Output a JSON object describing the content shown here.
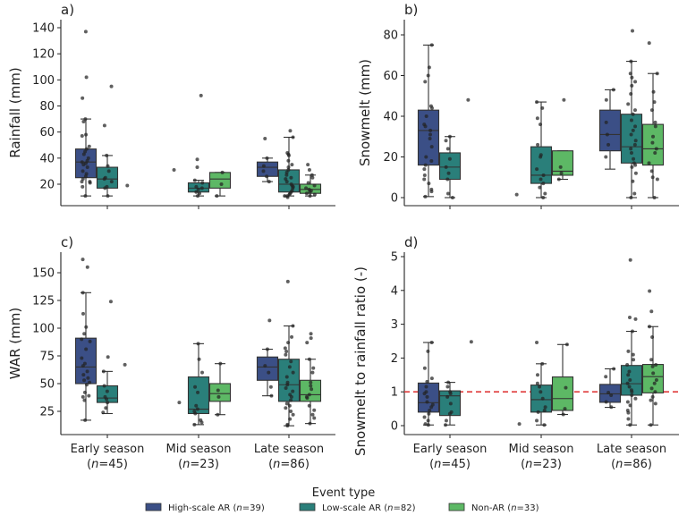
{
  "chart_data": {
    "type": "boxplot",
    "legend": {
      "title": "Event type",
      "placement": "bottom-center",
      "entries": [
        {
          "key": "high",
          "label": "High-scale AR (",
          "n_label": "n",
          "suffix": "=39)",
          "color": "#3b4f86"
        },
        {
          "key": "low",
          "label": "Low-scale AR (",
          "n_label": "n",
          "suffix": "=82)",
          "color": "#2a7f7a"
        },
        {
          "key": "non",
          "label": "Non-AR (",
          "n_label": "n",
          "suffix": "=33)",
          "color": "#5db865"
        }
      ]
    },
    "categories": [
      {
        "label": "Early season",
        "n": "(n=45)",
        "n_pre": "(",
        "n_it": "n",
        "n_post": "=45)"
      },
      {
        "label": "Mid season",
        "n": "(n=23)",
        "n_pre": "(",
        "n_it": "n",
        "n_post": "=23)"
      },
      {
        "label": "Late season",
        "n": "(n=86)",
        "n_pre": "(",
        "n_it": "n",
        "n_post": "=86)"
      }
    ],
    "panels": [
      {
        "id": "a",
        "label": "a)",
        "ylabel": "Rainfall (mm)",
        "ylim": [
          3,
          143
        ],
        "yticks": [
          20,
          40,
          60,
          80,
          100,
          120,
          140
        ],
        "show_xlabels": false,
        "boxes": [
          {
            "cat": 0,
            "series": "high",
            "q1": 25,
            "median": 37,
            "q3": 47,
            "whislo": 11,
            "whishi": 70,
            "points": [
              137,
              102,
              86,
              68,
              70,
              58,
              57,
              49,
              47,
              45,
              43,
              40,
              38,
              37,
              36,
              35,
              33,
              30,
              28,
              26,
              24,
              22,
              22,
              21,
              18,
              11
            ]
          },
          {
            "cat": 0,
            "series": "low",
            "q1": 17,
            "median": 24,
            "q3": 33,
            "whislo": 11,
            "whishi": 42,
            "points": [
              95,
              65,
              42,
              34,
              30,
              25,
              24,
              22,
              18,
              17,
              11
            ]
          },
          {
            "cat": 0,
            "series": "non",
            "q1": null,
            "median": null,
            "q3": null,
            "whislo": null,
            "whishi": null,
            "points": [
              19
            ]
          },
          {
            "cat": 1,
            "series": "high",
            "q1": null,
            "median": null,
            "q3": null,
            "whislo": null,
            "whishi": null,
            "points": [
              31
            ]
          },
          {
            "cat": 1,
            "series": "low",
            "q1": 14,
            "median": 17,
            "q3": 21,
            "whislo": 11,
            "whishi": 23,
            "points": [
              88,
              39,
              33,
              23,
              21,
              18,
              17,
              16,
              14,
              13,
              11
            ]
          },
          {
            "cat": 1,
            "series": "non",
            "q1": 17,
            "median": 24,
            "q3": 29,
            "whislo": 11,
            "whishi": 29,
            "points": [
              29,
              20,
              11
            ]
          },
          {
            "cat": 2,
            "series": "high",
            "q1": 26,
            "median": 33,
            "q3": 37,
            "whislo": 22,
            "whishi": 40,
            "points": [
              55,
              40,
              34,
              30,
              26,
              22
            ]
          },
          {
            "cat": 2,
            "series": "low",
            "q1": 14,
            "median": 20,
            "q3": 31,
            "whislo": 11,
            "whishi": 56,
            "points": [
              61,
              56,
              44,
              43,
              42,
              38,
              35,
              33,
              31,
              29,
              27,
              25,
              24,
              22,
              20,
              19,
              18,
              17,
              15,
              14,
              13,
              12,
              11,
              11,
              10
            ]
          },
          {
            "cat": 2,
            "series": "non",
            "q1": 13,
            "median": 16,
            "q3": 20,
            "whislo": 11,
            "whishi": 27,
            "points": [
              35,
              31,
              27,
              25,
              21,
              19,
              17,
              16,
              15,
              14,
              13,
              12,
              11
            ]
          }
        ]
      },
      {
        "id": "b",
        "label": "b)",
        "ylabel": "Snowmelt (mm)",
        "ylim": [
          -3,
          86
        ],
        "yticks": [
          0,
          20,
          40,
          60,
          80
        ],
        "show_xlabels": false,
        "boxes": [
          {
            "cat": 0,
            "series": "high",
            "q1": 16,
            "median": 33,
            "q3": 43,
            "whislo": 0.5,
            "whishi": 75,
            "points": [
              75,
              64,
              60,
              57,
              45,
              44,
              40,
              36,
              35,
              33,
              31,
              29,
              25,
              20,
              18,
              16,
              14,
              11,
              9,
              7,
              4,
              3,
              0.5
            ]
          },
          {
            "cat": 0,
            "series": "low",
            "q1": 9,
            "median": 15,
            "q3": 22,
            "whislo": 0,
            "whishi": 30,
            "points": [
              30,
              28,
              24,
              19,
              15,
              12,
              9,
              2,
              0
            ]
          },
          {
            "cat": 0,
            "series": "non",
            "q1": null,
            "median": null,
            "q3": null,
            "whislo": null,
            "whishi": null,
            "points": [
              48
            ]
          },
          {
            "cat": 1,
            "series": "high",
            "q1": null,
            "median": null,
            "q3": null,
            "whislo": null,
            "whishi": null,
            "points": [
              1.5
            ]
          },
          {
            "cat": 1,
            "series": "low",
            "q1": 7,
            "median": 11,
            "q3": 25,
            "whislo": 0,
            "whishi": 47,
            "points": [
              47,
              44,
              39,
              36,
              26,
              21,
              20,
              14,
              11,
              9,
              7,
              5,
              2,
              0
            ]
          },
          {
            "cat": 1,
            "series": "non",
            "q1": 11,
            "median": 13,
            "q3": 23,
            "whislo": 9,
            "whishi": 23,
            "points": [
              48,
              15,
              12,
              9
            ]
          },
          {
            "cat": 2,
            "series": "high",
            "q1": 23,
            "median": 31,
            "q3": 43,
            "whislo": 14,
            "whishi": 53,
            "points": [
              53,
              48,
              37,
              31,
              26,
              20
            ]
          },
          {
            "cat": 2,
            "series": "low",
            "q1": 17,
            "median": 25,
            "q3": 41,
            "whislo": 0,
            "whishi": 67,
            "points": [
              82,
              67,
              61,
              59,
              57,
              55,
              51,
              46,
              43,
              41,
              38,
              35,
              33,
              31,
              28,
              26,
              24,
              22,
              19,
              17,
              16,
              15,
              12,
              8,
              2,
              0
            ]
          },
          {
            "cat": 2,
            "series": "non",
            "q1": 16,
            "median": 24,
            "q3": 36,
            "whislo": 0,
            "whishi": 61,
            "points": [
              76,
              61,
              52,
              47,
              43,
              37,
              35,
              30,
              27,
              24,
              22,
              17,
              13,
              10,
              9,
              0
            ]
          }
        ]
      },
      {
        "id": "c",
        "label": "c)",
        "ylabel": "WAR (mm)",
        "ylim": [
          8,
          170
        ],
        "yticks": [
          25,
          50,
          75,
          100,
          125,
          150
        ],
        "show_xlabels": true,
        "boxes": [
          {
            "cat": 0,
            "series": "high",
            "q1": 50,
            "median": 65,
            "q3": 91,
            "whislo": 17,
            "whishi": 132,
            "points": [
              162,
              155,
              132,
              113,
              101,
              95,
              90,
              88,
              81,
              73,
              68,
              66,
              61,
              58,
              55,
              53,
              51,
              49,
              42,
              39,
              38,
              35,
              17
            ]
          },
          {
            "cat": 0,
            "series": "low",
            "q1": 33,
            "median": 37,
            "q3": 48,
            "whislo": 23,
            "whishi": 61,
            "points": [
              124,
              74,
              61,
              48,
              43,
              38,
              36,
              33,
              28,
              24
            ]
          },
          {
            "cat": 0,
            "series": "non",
            "q1": null,
            "median": null,
            "q3": null,
            "whislo": null,
            "whishi": null,
            "points": [
              67
            ]
          },
          {
            "cat": 1,
            "series": "high",
            "q1": null,
            "median": null,
            "q3": null,
            "whislo": null,
            "whishi": null,
            "points": [
              33
            ]
          },
          {
            "cat": 1,
            "series": "low",
            "q1": 23,
            "median": 27,
            "q3": 56,
            "whislo": 13,
            "whishi": 86,
            "points": [
              86,
              72,
              60,
              47,
              42,
              30,
              27,
              25,
              23,
              17,
              15,
              13
            ]
          },
          {
            "cat": 1,
            "series": "non",
            "q1": 34,
            "median": 41,
            "q3": 50,
            "whislo": 22,
            "whishi": 68,
            "points": [
              68,
              44,
              38,
              22
            ]
          },
          {
            "cat": 2,
            "series": "high",
            "q1": 53,
            "median": 65,
            "q3": 74,
            "whislo": 39,
            "whishi": 81,
            "points": [
              107,
              81,
              66,
              60,
              47,
              39
            ]
          },
          {
            "cat": 2,
            "series": "low",
            "q1": 34,
            "median": 49,
            "q3": 72,
            "whislo": 12,
            "whishi": 102,
            "points": [
              142,
              102,
              92,
              87,
              82,
              79,
              76,
              70,
              65,
              60,
              56,
              51,
              49,
              46,
              43,
              40,
              38,
              35,
              32,
              30,
              28,
              25,
              22,
              18,
              13,
              12
            ]
          },
          {
            "cat": 2,
            "series": "non",
            "q1": 34,
            "median": 40,
            "q3": 53,
            "whislo": 14,
            "whishi": 72,
            "points": [
              95,
              91,
              87,
              72,
              64,
              60,
              51,
              48,
              45,
              40,
              38,
              37,
              30,
              26,
              22,
              19,
              14
            ]
          }
        ]
      },
      {
        "id": "d",
        "label": "d)",
        "ylabel": "Snowmelt to rainfall ratio (-)",
        "ylim": [
          -0.2,
          5.2
        ],
        "yticks": [
          0,
          1,
          2,
          3,
          4,
          5
        ],
        "show_xlabels": true,
        "reference_line": {
          "y": 1,
          "color": "#e03c3c",
          "style": "dashed"
        },
        "boxes": [
          {
            "cat": 0,
            "series": "high",
            "q1": 0.4,
            "median": 0.68,
            "q3": 1.26,
            "whislo": 0.02,
            "whishi": 2.46,
            "points": [
              2.46,
              2.2,
              1.7,
              1.4,
              1.3,
              1.15,
              1.0,
              0.95,
              0.85,
              0.7,
              0.62,
              0.55,
              0.45,
              0.35,
              0.25,
              0.15,
              0.05,
              0.02
            ]
          },
          {
            "cat": 0,
            "series": "low",
            "q1": 0.3,
            "median": 0.88,
            "q3": 1.03,
            "whislo": 0.02,
            "whishi": 1.28,
            "points": [
              1.28,
              1.15,
              1.0,
              0.95,
              0.85,
              0.65,
              0.4,
              0.35,
              0.15,
              0.02
            ]
          },
          {
            "cat": 0,
            "series": "non",
            "q1": null,
            "median": null,
            "q3": null,
            "whislo": null,
            "whishi": null,
            "points": [
              2.48
            ]
          },
          {
            "cat": 1,
            "series": "high",
            "q1": null,
            "median": null,
            "q3": null,
            "whislo": null,
            "whishi": null,
            "points": [
              0.05
            ]
          },
          {
            "cat": 1,
            "series": "low",
            "q1": 0.4,
            "median": 0.77,
            "q3": 1.2,
            "whislo": 0.02,
            "whishi": 1.83,
            "points": [
              2.46,
              1.83,
              1.5,
              1.25,
              1.15,
              1.0,
              0.8,
              0.55,
              0.45,
              0.4,
              0.15,
              0.02
            ]
          },
          {
            "cat": 1,
            "series": "non",
            "q1": 0.45,
            "median": 0.8,
            "q3": 1.44,
            "whislo": 0.33,
            "whishi": 2.4,
            "points": [
              2.4,
              1.12,
              0.5,
              0.33
            ]
          },
          {
            "cat": 2,
            "series": "high",
            "q1": 0.69,
            "median": 0.94,
            "q3": 1.22,
            "whislo": 0.54,
            "whishi": 1.68,
            "points": [
              1.68,
              1.45,
              0.98,
              0.9,
              0.7,
              0.55
            ]
          },
          {
            "cat": 2,
            "series": "low",
            "q1": 0.9,
            "median": 1.24,
            "q3": 1.78,
            "whislo": 0.02,
            "whishi": 2.79,
            "points": [
              4.9,
              3.2,
              3.15,
              2.79,
              2.2,
              2.1,
              1.95,
              1.8,
              1.6,
              1.5,
              1.35,
              1.25,
              1.15,
              1.05,
              1.0,
              0.9,
              0.8,
              0.7,
              0.6,
              0.45,
              0.38,
              0.2,
              0.02
            ]
          },
          {
            "cat": 2,
            "series": "non",
            "q1": 0.97,
            "median": 1.45,
            "q3": 1.81,
            "whislo": 0.02,
            "whishi": 2.93,
            "points": [
              3.98,
              3.38,
              2.93,
              2.62,
              1.95,
              1.8,
              1.75,
              1.55,
              1.35,
              1.25,
              1.1,
              1.0,
              0.85,
              0.75,
              0.65,
              0.02
            ]
          }
        ]
      }
    ]
  }
}
